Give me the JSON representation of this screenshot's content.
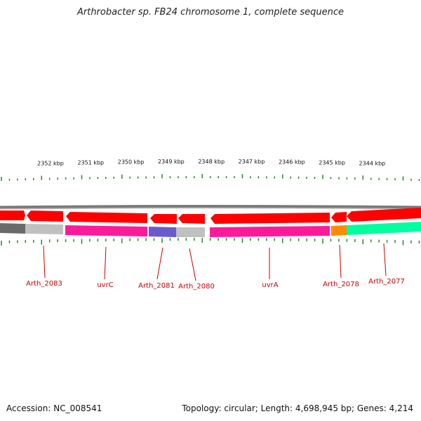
{
  "title": "Arthrobacter sp. FB24 chromosome 1, complete sequence",
  "footer": {
    "accession": "Accession: NC_008541",
    "summary": "Topology: circular; Length: 4,698,945 bp; Genes: 4,214"
  },
  "scale_labels": [
    "2352 kbp",
    "2351 kbp",
    "2350 kbp",
    "2349 kbp",
    "2348 kbp",
    "2347 kbp",
    "2346 kbp",
    "2345 kbp",
    "2344 kbp"
  ],
  "genes": [
    {
      "label": "Arth_2083",
      "color": "#c0c0c0"
    },
    {
      "label": "uvrC",
      "color": "#ff1a9a"
    },
    {
      "label": "Arth_2081",
      "color": "#6a5acd"
    },
    {
      "label": "Arth_2080",
      "color": "#c0c0c0"
    },
    {
      "label": "uvrA",
      "color": "#ff1a9a"
    },
    {
      "label": "Arth_2078",
      "color": "#ff8c00"
    },
    {
      "label": "Arth_2077",
      "color": "#00ff9f"
    }
  ],
  "colors": {
    "backbone": "#888888",
    "cds_arrow": "#ff0000",
    "ticks": "#228b22",
    "labels": "#cc0000"
  }
}
